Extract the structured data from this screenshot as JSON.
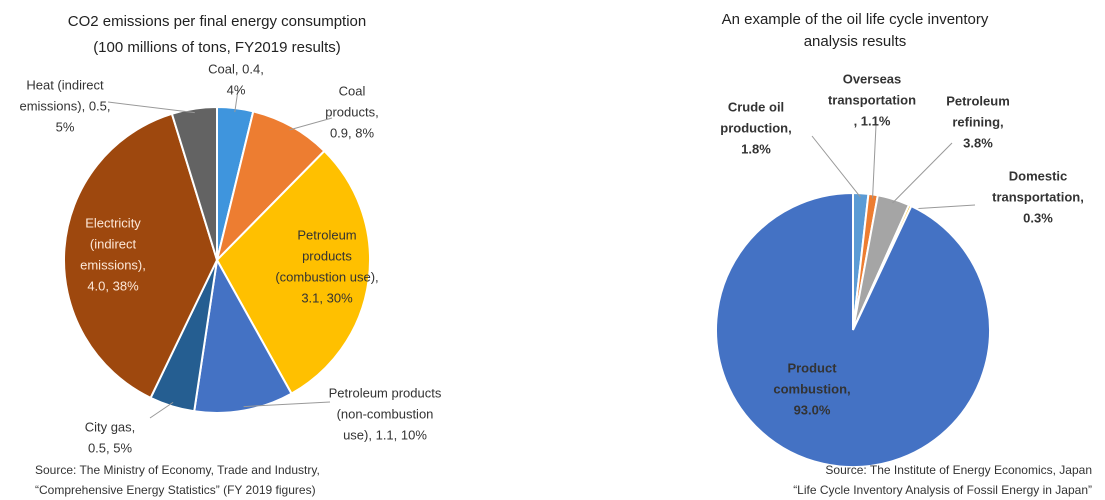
{
  "chart_data": [
    {
      "type": "pie",
      "title": [
        "CO2 emissions per final energy consumption",
        "(100 millions of tons, FY2019 results)"
      ],
      "values": [
        0.4,
        0.9,
        3.1,
        1.1,
        0.5,
        4.0,
        0.5
      ],
      "value_labels": [
        [
          "Coal, 0.4,",
          "4%"
        ],
        [
          "Coal",
          "products,",
          "0.9, 8%"
        ],
        [
          "Petroleum",
          "products",
          "(combustion use),",
          "3.1, 30%"
        ],
        [
          "Petroleum products",
          "(non-combustion",
          "use), 1.1, 10%"
        ],
        [
          "City gas,",
          "0.5, 5%"
        ],
        [
          "Electricity",
          "(indirect",
          "emissions),",
          "4.0, 38%"
        ],
        [
          "Heat (indirect",
          "emissions), 0.5,",
          "5%"
        ]
      ],
      "colors": [
        "#3f95dd",
        "#ed7d31",
        "#ffc000",
        "#4472c4",
        "#255e91",
        "#9e480e",
        "#636363"
      ],
      "source": [
        "Source: The Ministry of Economy, Trade and Industry,",
        "“Comprehensive Energy Statistics” (FY 2019 figures)"
      ]
    },
    {
      "type": "pie",
      "title": [
        "An example of the oil life cycle inventory",
        "analysis results"
      ],
      "values": [
        1.8,
        1.1,
        3.8,
        0.3,
        93.0
      ],
      "value_labels": [
        [
          "Crude oil",
          "production,",
          "1.8%"
        ],
        [
          "Overseas",
          "transportation",
          ", 1.1%"
        ],
        [
          "Petroleum",
          "refining,",
          "3.8%"
        ],
        [
          "Domestic",
          "transportation,",
          "0.3%"
        ],
        [
          "Product",
          "combustion,",
          "93.0%"
        ]
      ],
      "colors": [
        "#5b9bd5",
        "#ed7d31",
        "#a5a5a5",
        "#ffc000",
        "#4472c4"
      ],
      "source": [
        "Source: The Institute of Energy Economics, Japan",
        "“Life Cycle Inventory Analysis of Fossil Energy in Japan”"
      ]
    }
  ]
}
